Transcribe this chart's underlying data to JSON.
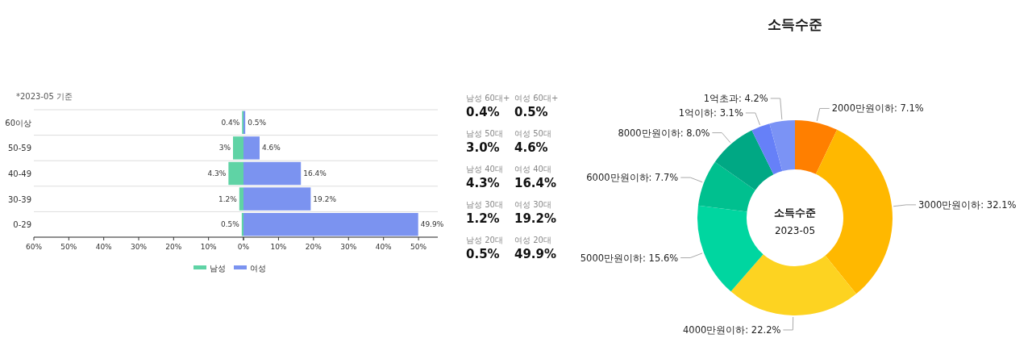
{
  "chart_data": [
    {
      "type": "bar",
      "orientation": "horizontal",
      "categories": [
        "60이상",
        "50-59",
        "40-49",
        "30-39",
        "0-29"
      ],
      "series": [
        {
          "name": "남성",
          "color": "#5fd3a5",
          "values": [
            0.4,
            3,
            4.3,
            1.2,
            0.5
          ],
          "value_labels": [
            "0.4%",
            "3%",
            "4.3%",
            "1.2%",
            "0.5%"
          ]
        }
      ],
      "xlim": [
        60,
        0
      ],
      "xticks": [
        {
          "value": 60,
          "label": "60%"
        },
        {
          "value": 50,
          "label": "50%"
        },
        {
          "value": 40,
          "label": "40%"
        },
        {
          "value": 30,
          "label": "30%"
        },
        {
          "value": 20,
          "label": "20%"
        },
        {
          "value": 10,
          "label": "10%"
        },
        {
          "value": 0,
          "label": "0%"
        }
      ],
      "grid": "y",
      "legend": "bottom",
      "annotations": [
        "*2023-05 기준"
      ]
    },
    {
      "type": "bar",
      "orientation": "horizontal",
      "categories": [
        null,
        null,
        null,
        null,
        null
      ],
      "series": [
        {
          "name": "여성",
          "color": "#7b93f0",
          "values": [
            0.5,
            4.6,
            16.4,
            19.2,
            49.9
          ],
          "value_labels": [
            "0.5%",
            "4.6%",
            "16.4%",
            "19.2%",
            "49.9%"
          ]
        }
      ],
      "xlim": [
        0,
        55.5
      ],
      "xticks": [
        {
          "value": 0,
          "label": null
        },
        {
          "value": 10,
          "label": "10%"
        },
        {
          "value": 20,
          "label": "20%"
        },
        {
          "value": 30,
          "label": "30%"
        },
        {
          "value": 40,
          "label": "40%"
        },
        {
          "value": 50,
          "label": "50%"
        }
      ],
      "grid": "y",
      "legend": "bottom",
      "tick_labels": "x"
    },
    {
      "type": "other",
      "annotations": [
        "남성 60대+",
        "여성 60대+",
        "0.4%",
        "0.5%",
        "남성 50대",
        "여성 50대",
        "3.0%",
        "4.6%",
        "남성 40대",
        "여성 40대",
        "4.3%",
        "16.4%",
        "남성 30대",
        "여성 30대",
        "1.2%",
        "19.2%",
        "남성 20대",
        "여성 20대",
        "0.5%",
        "49.9%"
      ]
    },
    {
      "type": "donut",
      "title": "소득수준",
      "categories": [
        "2000만원이하",
        "3000만원이하",
        "4000만원이하",
        "5000만원이하",
        "6000만원이하",
        "8000만원이하",
        "1억이하",
        "1억초과"
      ],
      "values": [
        7.1,
        32.1,
        22.2,
        15.6,
        7.7,
        8.0,
        3.1,
        4.2
      ],
      "colors": [
        "#ff7f00",
        "#ffb800",
        "#fdd321",
        "#00d6a0",
        "#00c08f",
        "#00a884",
        "#6680f8",
        "#7b93f5"
      ],
      "value_labels": [
        "7.1%",
        "32.1%",
        "22.2%",
        "15.6%",
        "7.7%",
        "8.0%",
        "3.1%",
        "4.2%"
      ],
      "annotations": [
        "소득수준",
        "2023-05"
      ]
    }
  ]
}
